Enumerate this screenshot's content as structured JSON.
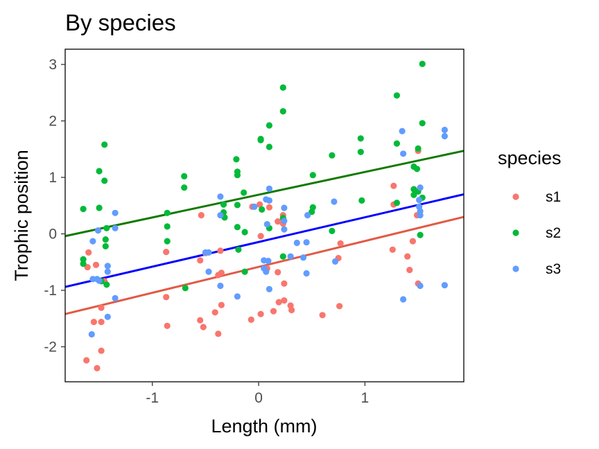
{
  "chart_data": {
    "type": "scatter",
    "title": "By species",
    "xlabel": "Length (mm)",
    "ylabel": "Trophic position",
    "xlim": [
      -1.82,
      1.93
    ],
    "ylim": [
      -2.62,
      3.27
    ],
    "xticks": [
      -1,
      0,
      1
    ],
    "yticks": [
      -2,
      -1,
      0,
      1,
      2,
      3
    ],
    "xtick_labels": [
      "-1",
      "0",
      "1"
    ],
    "ytick_labels": [
      "-2",
      "-1",
      "0",
      "1",
      "2",
      "3"
    ],
    "grid": false,
    "legend": {
      "title": "species",
      "position": "right"
    },
    "series": [
      {
        "name": "s1",
        "color": "#F8766D",
        "points": [
          [
            -1.6,
            -0.33
          ],
          [
            -1.61,
            -0.59
          ],
          [
            -1.55,
            -1.56
          ],
          [
            -1.53,
            -0.55
          ],
          [
            -1.48,
            -1.56
          ],
          [
            -1.48,
            -1.31
          ],
          [
            -1.62,
            -2.24
          ],
          [
            -1.48,
            -2.07
          ],
          [
            -1.52,
            -2.38
          ],
          [
            -1.45,
            -0.84
          ],
          [
            -0.87,
            -0.32
          ],
          [
            -0.87,
            -1.12
          ],
          [
            -0.86,
            -1.63
          ],
          [
            -0.55,
            -1.53
          ],
          [
            -0.52,
            -1.65
          ],
          [
            -0.55,
            -0.47
          ],
          [
            -0.54,
            0.33
          ],
          [
            -0.5,
            -0.34
          ],
          [
            -0.41,
            -1.39
          ],
          [
            -0.38,
            -1.77
          ],
          [
            -0.38,
            -0.73
          ],
          [
            -0.35,
            -0.69
          ],
          [
            -0.35,
            -1.26
          ],
          [
            -0.36,
            -0.3
          ],
          [
            -0.06,
            0.48
          ],
          [
            -0.07,
            -1.52
          ],
          [
            0.01,
            0.52
          ],
          [
            0.02,
            -0.04
          ],
          [
            0.02,
            -1.42
          ],
          [
            0.1,
            0.47
          ],
          [
            0.08,
            -0.61
          ],
          [
            0.14,
            -1.37
          ],
          [
            0.19,
            -1.21
          ],
          [
            0.18,
            0.22
          ],
          [
            0.18,
            -0.68
          ],
          [
            0.24,
            -1.18
          ],
          [
            0.23,
            0.33
          ],
          [
            0.23,
            0.18
          ],
          [
            0.24,
            -0.88
          ],
          [
            0.3,
            -1.27
          ],
          [
            0.31,
            -1.35
          ],
          [
            0.6,
            -1.44
          ],
          [
            0.75,
            -0.43
          ],
          [
            0.77,
            -0.17
          ],
          [
            0.76,
            -1.28
          ],
          [
            1.27,
            0.85
          ],
          [
            1.27,
            0.52
          ],
          [
            1.26,
            -0.28
          ],
          [
            1.4,
            -0.4
          ],
          [
            1.42,
            -0.64
          ],
          [
            1.45,
            -0.13
          ],
          [
            1.5,
            1.47
          ],
          [
            1.49,
            0.33
          ],
          [
            1.5,
            -0.88
          ]
        ]
      },
      {
        "name": "s2",
        "color": "#00BA38",
        "points": [
          [
            -1.65,
            0.44
          ],
          [
            -1.65,
            -0.45
          ],
          [
            -1.65,
            -0.53
          ],
          [
            -1.5,
            1.11
          ],
          [
            -1.5,
            0.46
          ],
          [
            -1.45,
            1.58
          ],
          [
            -1.45,
            0.94
          ],
          [
            -1.43,
            0.1
          ],
          [
            -1.44,
            -0.1
          ],
          [
            -1.44,
            -0.22
          ],
          [
            -1.43,
            -0.9
          ],
          [
            -1.48,
            -0.84
          ],
          [
            -0.86,
            0.37
          ],
          [
            -0.86,
            0.13
          ],
          [
            -0.86,
            -0.13
          ],
          [
            -0.7,
            1.02
          ],
          [
            -0.7,
            0.82
          ],
          [
            -0.69,
            -0.96
          ],
          [
            -0.33,
            0.52
          ],
          [
            -0.33,
            0.38
          ],
          [
            -0.32,
            0.29
          ],
          [
            -0.21,
            1.32
          ],
          [
            -0.2,
            1.1
          ],
          [
            -0.2,
            1.04
          ],
          [
            -0.2,
            0.51
          ],
          [
            -0.2,
            0.12
          ],
          [
            -0.19,
            -0.28
          ],
          [
            -0.14,
            0.73
          ],
          [
            -0.13,
            0.03
          ],
          [
            -0.13,
            -0.67
          ],
          [
            0.02,
            1.68
          ],
          [
            0.02,
            1.66
          ],
          [
            0.03,
            0.43
          ],
          [
            0.1,
            1.92
          ],
          [
            0.1,
            1.54
          ],
          [
            0.1,
            0.1
          ],
          [
            0.23,
            2.59
          ],
          [
            0.23,
            2.17
          ],
          [
            0.23,
            0.28
          ],
          [
            0.23,
            -0.4
          ],
          [
            0.51,
            1.04
          ],
          [
            0.51,
            0.47
          ],
          [
            0.5,
            0.39
          ],
          [
            0.69,
            1.39
          ],
          [
            0.69,
            0.05
          ],
          [
            0.96,
            1.69
          ],
          [
            0.96,
            1.45
          ],
          [
            0.97,
            0.59
          ],
          [
            1.3,
            2.45
          ],
          [
            1.3,
            1.6
          ],
          [
            1.3,
            0.55
          ],
          [
            1.46,
            1.19
          ],
          [
            1.46,
            0.79
          ],
          [
            1.46,
            0.69
          ],
          [
            1.49,
            1.15
          ],
          [
            1.5,
            1.51
          ],
          [
            1.5,
            0.75
          ],
          [
            1.52,
            -0.02
          ],
          [
            1.54,
            3.01
          ],
          [
            1.54,
            1.96
          ],
          [
            1.54,
            0.64
          ]
        ]
      },
      {
        "name": "s3",
        "color": "#619CFF",
        "points": [
          [
            -1.56,
            -0.13
          ],
          [
            -1.56,
            -0.8
          ],
          [
            -1.57,
            -1.78
          ],
          [
            -1.51,
            0.06
          ],
          [
            -1.52,
            -0.8
          ],
          [
            -1.5,
            -0.83
          ],
          [
            -1.42,
            -0.57
          ],
          [
            -1.42,
            -0.67
          ],
          [
            -1.42,
            -1.47
          ],
          [
            -1.35,
            0.37
          ],
          [
            -1.35,
            0.1
          ],
          [
            -1.35,
            -1.14
          ],
          [
            -0.5,
            -0.33
          ],
          [
            -0.47,
            -0.33
          ],
          [
            -0.47,
            -0.67
          ],
          [
            -0.36,
            0.66
          ],
          [
            -0.36,
            0.33
          ],
          [
            -0.36,
            -0.92
          ],
          [
            -0.2,
            -1.11
          ],
          [
            -0.04,
            0.48
          ],
          [
            0.05,
            -0.47
          ],
          [
            0.05,
            -0.61
          ],
          [
            0.07,
            -0.67
          ],
          [
            0.07,
            0.61
          ],
          [
            0.08,
            0.17
          ],
          [
            0.09,
            -0.48
          ],
          [
            0.1,
            0.8
          ],
          [
            0.1,
            0.59
          ],
          [
            0.1,
            -0.98
          ],
          [
            0.24,
            0.46
          ],
          [
            0.24,
            0.23
          ],
          [
            0.24,
            0.08
          ],
          [
            0.3,
            -0.4
          ],
          [
            0.36,
            -0.16
          ],
          [
            0.42,
            -0.42
          ],
          [
            0.46,
            0.33
          ],
          [
            0.45,
            -0.15
          ],
          [
            0.45,
            -0.7
          ],
          [
            0.71,
            0.57
          ],
          [
            0.72,
            -0.49
          ],
          [
            1.35,
            1.82
          ],
          [
            1.36,
            1.42
          ],
          [
            1.36,
            -1.16
          ],
          [
            1.52,
            0.82
          ],
          [
            1.51,
            0.6
          ],
          [
            1.51,
            0.48
          ],
          [
            1.52,
            0.4
          ],
          [
            1.52,
            0.33
          ],
          [
            1.52,
            -0.92
          ],
          [
            1.75,
            1.84
          ],
          [
            1.75,
            1.73
          ],
          [
            1.75,
            -0.91
          ]
        ]
      }
    ],
    "trend_lines": [
      {
        "series": "s1",
        "color": "#E15A45",
        "x": [
          -1.82,
          1.93
        ],
        "y": [
          -1.42,
          0.3
        ]
      },
      {
        "series": "s2",
        "color": "#117A00",
        "x": [
          -1.82,
          1.93
        ],
        "y": [
          -0.04,
          1.47
        ]
      },
      {
        "series": "s3",
        "color": "#0000FF",
        "x": [
          -1.82,
          1.93
        ],
        "y": [
          -0.94,
          0.7
        ]
      }
    ]
  }
}
